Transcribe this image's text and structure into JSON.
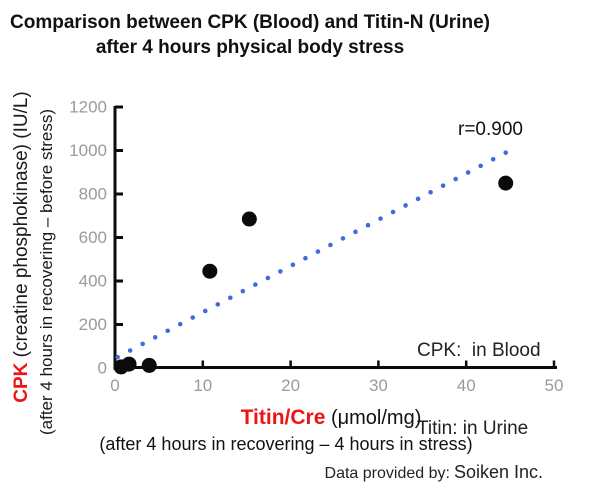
{
  "title": {
    "line1": "Comparison between CPK (Blood) and Titin-N (Urine)",
    "line2": "after 4 hours physical body stress"
  },
  "y_axis": {
    "label_main_prefix": "CPK",
    "label_main_rest": " (creatine phosphokinase) (IU/L)",
    "label_sub": "(after 4 hours in recovering – before stress)",
    "tick_labels": [
      "0",
      "200",
      "400",
      "600",
      "800",
      "1000",
      "1200"
    ]
  },
  "x_axis": {
    "label_main_prefix": "Titin/Cre",
    "label_main_rest": " (μmol/mg)",
    "label_sub": "(after 4 hours in recovering – 4 hours in stress)",
    "tick_labels": [
      "0",
      "10",
      "20",
      "30",
      "40",
      "50"
    ]
  },
  "annotations": {
    "correlation": "r=0.900",
    "legend_line1": "CPK:  in Blood",
    "legend_line2": "Titin: in Urine"
  },
  "footer": {
    "credit_prefix": "Data provided by:",
    "credit_org": "Soiken Inc."
  },
  "colors": {
    "accent_red": "#ee1414",
    "trend_blue": "#4169e1",
    "point_black": "#0b0b0b",
    "tick_gray": "#9a9a9a",
    "axis_black": "#0b0b0b"
  },
  "chart_data": {
    "type": "scatter",
    "title": "Comparison between CPK (Blood) and Titin-N (Urine) after 4 hours physical body stress",
    "xlabel": "Titin/Cre (μmol/mg) (after 4 hours in recovering – 4 hours in stress)",
    "ylabel": "CPK (creatine phosphokinase) (IU/L) (after 4 hours in recovering – before stress)",
    "xlim": [
      0,
      50
    ],
    "ylim": [
      0,
      1200
    ],
    "x_ticks": [
      0,
      10,
      20,
      30,
      40,
      50
    ],
    "y_ticks": [
      0,
      200,
      400,
      600,
      800,
      1000,
      1200
    ],
    "grid": false,
    "legend_position": "inside-right",
    "points": [
      [
        0.7,
        5
      ],
      [
        1.6,
        18
      ],
      [
        3.9,
        12
      ],
      [
        10.8,
        445
      ],
      [
        15.3,
        685
      ],
      [
        44.5,
        850
      ]
    ],
    "point_radius_px": 7.5,
    "trendline": {
      "x1": 0.3,
      "y1": 50,
      "x2": 44.5,
      "y2": 990,
      "dots": 32,
      "dot_radius_px": 2.3,
      "correlation": 0.9
    }
  }
}
